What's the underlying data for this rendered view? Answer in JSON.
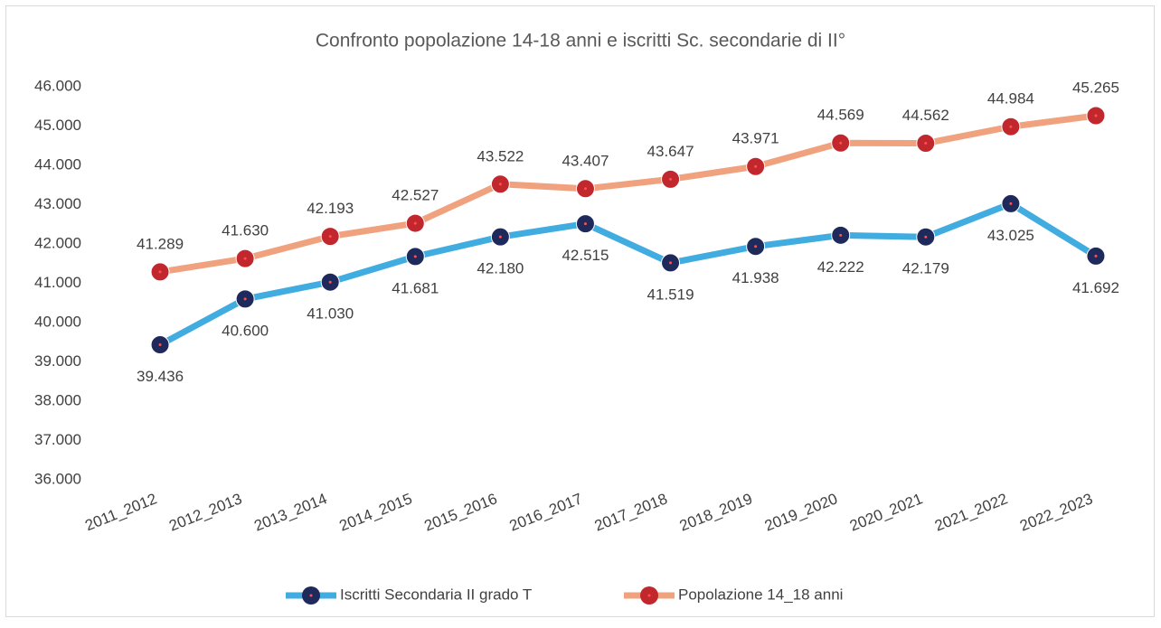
{
  "chart_data": {
    "type": "line",
    "title": "Confronto popolazione 14-18 anni e iscritti Sc. secondarie di II°",
    "categories": [
      "2011_2012",
      "2012_2013",
      "2013_2014",
      "2014_2015",
      "2015_2016",
      "2016_2017",
      "2017_2018",
      "2018_2019",
      "2019_2020",
      "2020_2021",
      "2021_2022",
      "2022_2023"
    ],
    "series": [
      {
        "name": "Iscritti Secondaria II grado T",
        "color": "#41acdf",
        "marker_color": "#1f2a5c",
        "values": [
          39436,
          40600,
          41030,
          41681,
          42180,
          42515,
          41519,
          41938,
          42222,
          42179,
          43025,
          41692
        ],
        "value_labels": [
          "39.436",
          "40.600",
          "41.030",
          "41.681",
          "42.180",
          "42.515",
          "41.519",
          "41.938",
          "42.222",
          "42.179",
          "43.025",
          "41.692"
        ]
      },
      {
        "name": "Popolazione 14_18 anni",
        "color": "#f0a27e",
        "marker_color": "#c1272d",
        "values": [
          41289,
          41630,
          42193,
          42527,
          43522,
          43407,
          43647,
          43971,
          44569,
          44562,
          44984,
          45265
        ],
        "value_labels": [
          "41.289",
          "41.630",
          "42.193",
          "42.527",
          "43.522",
          "43.407",
          "43.647",
          "43.971",
          "44.569",
          "44.562",
          "44.984",
          "45.265"
        ]
      }
    ],
    "ylim": [
      36000,
      46000
    ],
    "yticks": [
      {
        "value": 36000,
        "label": "36.000"
      },
      {
        "value": 37000,
        "label": "37.000"
      },
      {
        "value": 38000,
        "label": "38.000"
      },
      {
        "value": 39000,
        "label": "39.000"
      },
      {
        "value": 40000,
        "label": "40.000"
      },
      {
        "value": 41000,
        "label": "41.000"
      },
      {
        "value": 42000,
        "label": "42.000"
      },
      {
        "value": 43000,
        "label": "43.000"
      },
      {
        "value": 44000,
        "label": "44.000"
      },
      {
        "value": 45000,
        "label": "45.000"
      },
      {
        "value": 46000,
        "label": "46.000"
      }
    ],
    "grid": false,
    "legend": "bottom"
  }
}
